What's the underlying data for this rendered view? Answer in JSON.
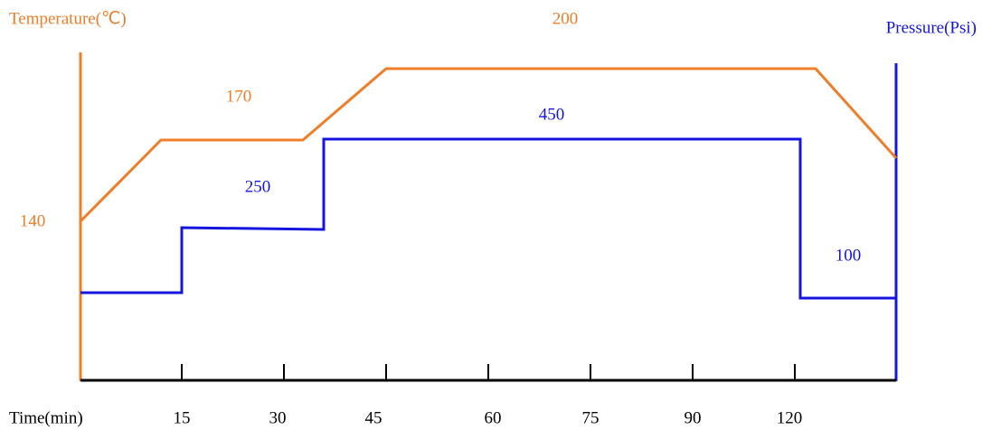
{
  "titles": {
    "temperature": "Temperature(℃)",
    "pressure": "Pressure(Psi)",
    "time": "Time(min)"
  },
  "time_labels": [
    "15",
    "30",
    "45",
    "60",
    "75",
    "90",
    "120"
  ],
  "temperature_labels": [
    "140",
    "170",
    "200"
  ],
  "pressure_labels": [
    "250",
    "450",
    "100"
  ]
}
